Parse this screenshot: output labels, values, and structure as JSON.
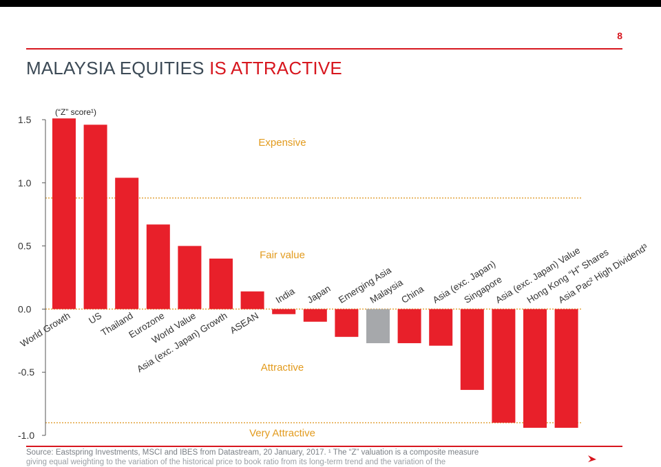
{
  "slide": {
    "page_number": "8",
    "title_part1": "MALAYSIA EQUITIES ",
    "title_part2": "IS ATTRACTIVE",
    "source_line1": "Source: Eastspring Investments, MSCI and IBES from Datastream,  20 January, 2017. ¹ The “Z” valuation is a composite measure",
    "source_line2": "giving equal weighting to the variation of the historical price to book ratio from its long-term trend and the variation of the"
  },
  "colors": {
    "accent": "#d7161e",
    "bar": "#e8202a",
    "highlight_bar": "#a6a8ab",
    "zone_text": "#e29a1c",
    "threshold_line": "#e2a23a"
  },
  "chart_data": {
    "type": "bar",
    "unit_label": "(“Z” score¹)",
    "ylim": [
      -1.0,
      1.5
    ],
    "yticks": [
      "1.5",
      "1.0",
      "0.5",
      "0.0",
      "-0.5",
      "-1.0"
    ],
    "categories": [
      "World Growth",
      "US",
      "Thailand",
      "Eurozone",
      "World Value",
      "Asia (exc. Japan) Growth",
      "ASEAN",
      "India",
      "Japan",
      "Emerging Asia",
      "Malaysia",
      "China",
      "Asia (exc. Japan)",
      "Singapore",
      "Asia (exc. Japan) Value",
      "Hong Kong “H” Shares",
      "Asia Pac² High Dividend³"
    ],
    "values": [
      1.51,
      1.46,
      1.04,
      0.67,
      0.5,
      0.4,
      0.14,
      -0.04,
      -0.1,
      -0.22,
      -0.27,
      -0.27,
      -0.29,
      -0.64,
      -0.9,
      -0.94,
      -0.94
    ],
    "highlight": "Malaysia",
    "thresholds": [
      0.88,
      -0.9
    ],
    "zones": [
      {
        "label": "Expensive",
        "value": 1.32
      },
      {
        "label": "Fair value",
        "value": 0.43
      },
      {
        "label": "Attractive",
        "value": -0.46
      },
      {
        "label": "Very Attractive",
        "value": -0.98
      }
    ],
    "grid": false
  }
}
